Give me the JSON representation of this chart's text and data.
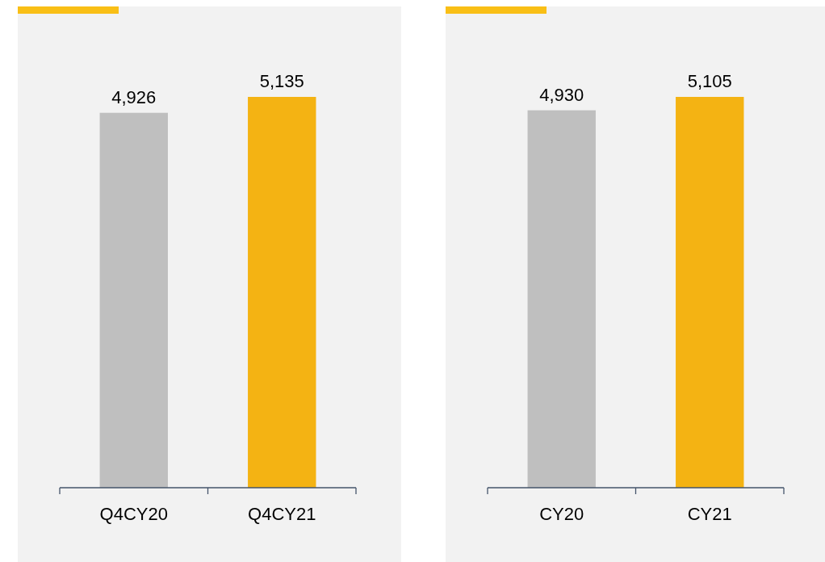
{
  "chart_data": [
    {
      "type": "bar",
      "categories": [
        "Q4CY20",
        "Q4CY21"
      ],
      "values": [
        4926,
        5135
      ],
      "value_labels": [
        "4,926",
        "5,135"
      ],
      "colors": [
        "#bfbfbf",
        "#f4b313"
      ],
      "tick_labels": "x"
    },
    {
      "type": "bar",
      "categories": [
        "CY20",
        "CY21"
      ],
      "values": [
        4930,
        5105
      ],
      "value_labels": [
        "4,930",
        "5,105"
      ],
      "colors": [
        "#bfbfbf",
        "#f4b313"
      ],
      "tick_labels": "x"
    }
  ]
}
